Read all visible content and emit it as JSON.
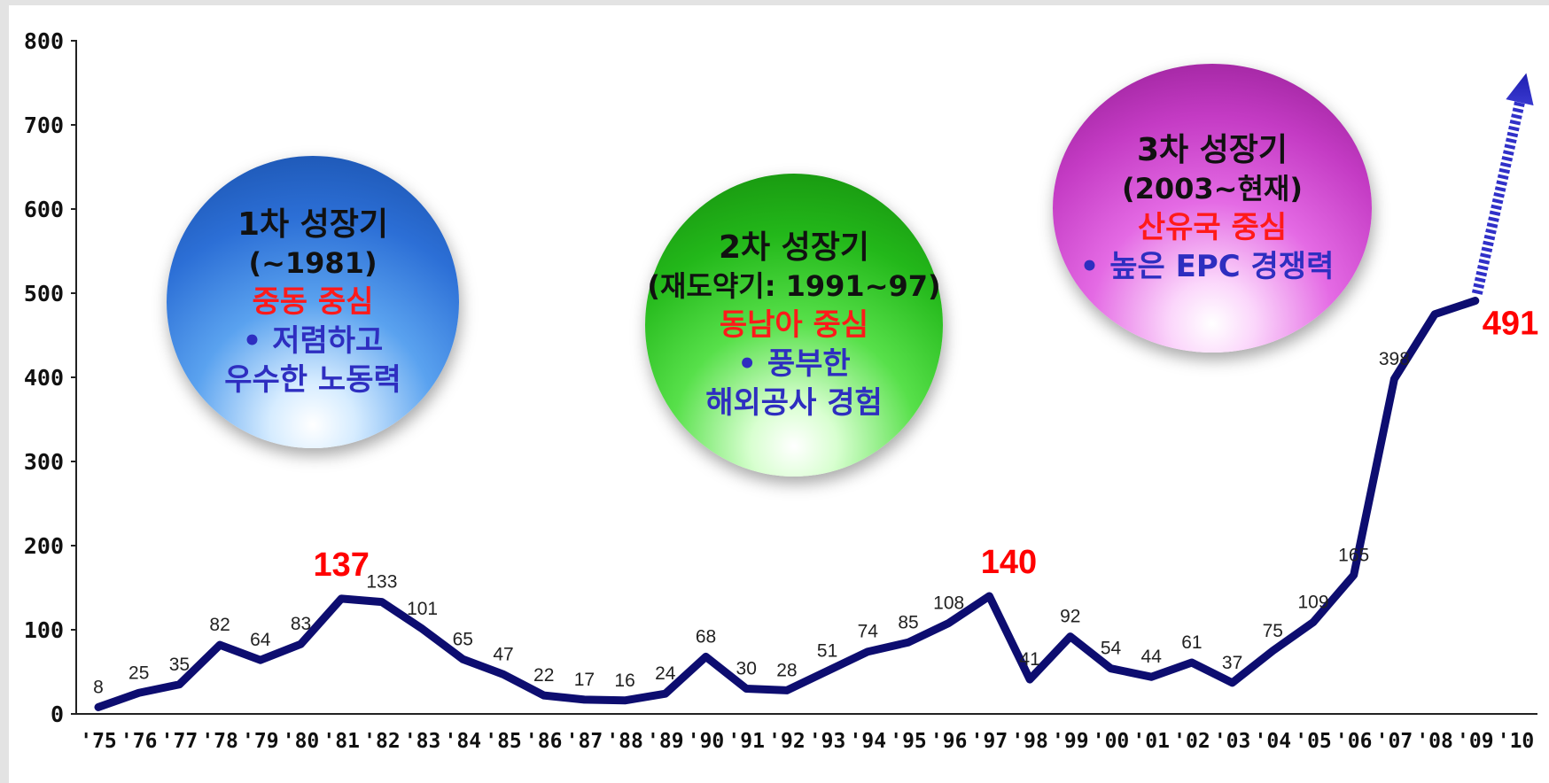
{
  "chart_data": {
    "type": "line",
    "categories": [
      "'75",
      "'76",
      "'77",
      "'78",
      "'79",
      "'80",
      "'81",
      "'82",
      "'83",
      "'84",
      "'85",
      "'86",
      "'87",
      "'88",
      "'89",
      "'90",
      "'91",
      "'92",
      "'93",
      "'94",
      "'95",
      "'96",
      "'97",
      "'98",
      "'99",
      "'00",
      "'01",
      "'02",
      "'03",
      "'04",
      "'05",
      "'06",
      "'07",
      "'08",
      "'09",
      "'10"
    ],
    "values": [
      8,
      25,
      35,
      82,
      64,
      83,
      137,
      133,
      101,
      65,
      47,
      22,
      17,
      16,
      24,
      68,
      30,
      28,
      51,
      74,
      85,
      108,
      140,
      41,
      92,
      54,
      44,
      61,
      37,
      75,
      109,
      165,
      398,
      475,
      491,
      null
    ],
    "data_labels": [
      "8",
      "25",
      "35",
      "82",
      "64",
      "83",
      "",
      "133",
      "101",
      "65",
      "47",
      "22",
      "17",
      "16",
      "24",
      "68",
      "30",
      "28",
      "51",
      "74",
      "85",
      "108",
      "",
      "41",
      "92",
      "54",
      "44",
      "61",
      "37",
      "75",
      "109",
      "165",
      "398",
      "",
      "",
      ""
    ],
    "highlight_labels": [
      {
        "category": "'81",
        "text": "137"
      },
      {
        "category": "'97",
        "text": "140"
      },
      {
        "category": "'09",
        "text": "491"
      }
    ],
    "ylim": [
      0,
      800
    ],
    "yticks": [
      "0",
      "100",
      "200",
      "300",
      "400",
      "500",
      "600",
      "700",
      "800"
    ],
    "trend_arrow": "dotted upward arrow after '09",
    "line_color": "#0d0d70",
    "highlight_color": "#ff0000",
    "title": "",
    "xlabel": "",
    "ylabel": ""
  },
  "phases": [
    {
      "title": "1차 성장기",
      "period": "(~1981)",
      "focus": "중동 중심",
      "desc_lines": [
        "•  저렴하고",
        "우수한 노동력"
      ],
      "color": "blue"
    },
    {
      "title": "2차 성장기",
      "period": "(재도약기: 1991~97)",
      "focus": "동남아 중심",
      "desc_lines": [
        "•  풍부한",
        "해외공사 경험"
      ],
      "color": "green"
    },
    {
      "title": "3차 성장기",
      "period": "(2003~현재)",
      "focus": "산유국 중심",
      "desc_lines": [
        "•  높은 EPC 경쟁력"
      ],
      "color": "magenta"
    }
  ]
}
